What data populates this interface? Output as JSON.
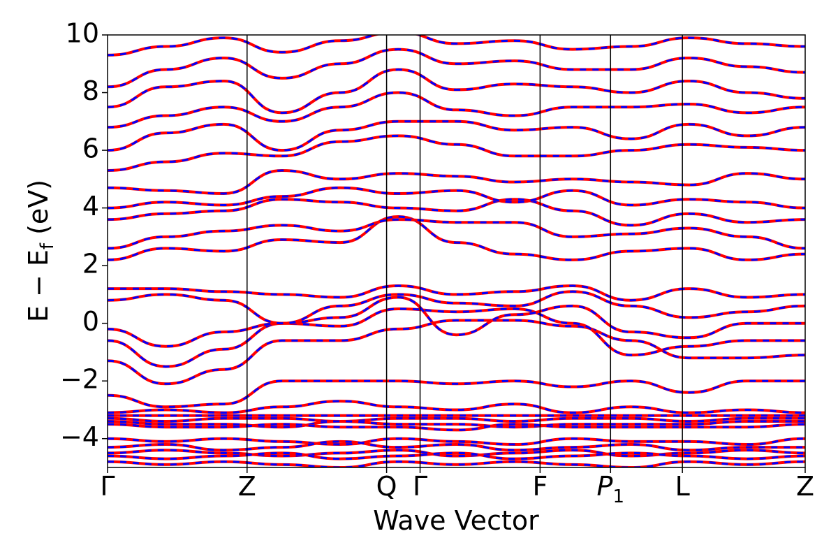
{
  "chart_data": {
    "type": "line",
    "title": "",
    "xlabel": "Wave Vector",
    "ylabel": "E − E",
    "ylabel_sub": "f",
    "ylabel_unit": " (eV)",
    "ylim": [
      -5,
      10
    ],
    "yticks": [
      -4,
      -2,
      0,
      2,
      4,
      6,
      8,
      10
    ],
    "ytick_labels": [
      "−4",
      "−2",
      "0",
      "2",
      "4",
      "6",
      "8",
      "10"
    ],
    "x_range": [
      0,
      1
    ],
    "kpoints": [
      {
        "label": "Γ",
        "x": 0.0
      },
      {
        "label": "Z",
        "x": 0.2
      },
      {
        "label": "Q",
        "x": 0.4
      },
      {
        "label": "Γ",
        "x": 0.448
      },
      {
        "label": "F",
        "x": 0.62
      },
      {
        "label": "P",
        "sub": "1",
        "italic": true,
        "x": 0.721
      },
      {
        "label": "L",
        "x": 0.824
      },
      {
        "label": "Z",
        "x": 1.0
      }
    ],
    "series_style": [
      {
        "color": "#ff0000",
        "style": "solid"
      },
      {
        "color": "#0000ff",
        "style": "dashed"
      }
    ],
    "bands": [
      [
        -1.3,
        -2.1,
        -1.6,
        -0.6,
        -0.6,
        -0.2,
        0.1,
        0.1,
        -0.1,
        -0.6,
        -1.2,
        -1.2,
        -1.1
      ],
      [
        -0.6,
        -1.5,
        -0.9,
        0.0,
        -0.1,
        0.5,
        0.4,
        0.5,
        0.0,
        -1.1,
        -0.8,
        -0.6,
        -0.6
      ],
      [
        -0.2,
        -0.8,
        -0.3,
        0.0,
        0.2,
        0.9,
        -0.4,
        0.3,
        0.6,
        -0.3,
        -0.5,
        0.0,
        0.0
      ],
      [
        0.8,
        1.0,
        0.8,
        0.0,
        0.6,
        1.0,
        0.7,
        0.6,
        1.1,
        0.6,
        0.2,
        0.4,
        0.6
      ],
      [
        1.2,
        1.2,
        1.1,
        1.0,
        0.9,
        1.3,
        1.0,
        1.1,
        1.3,
        0.8,
        1.2,
        0.9,
        1.0
      ],
      [
        2.2,
        2.6,
        2.5,
        2.9,
        2.8,
        3.7,
        2.8,
        2.4,
        2.2,
        2.5,
        2.6,
        2.2,
        2.4
      ],
      [
        2.6,
        3.0,
        3.2,
        3.4,
        3.2,
        3.6,
        3.5,
        3.5,
        3.0,
        3.1,
        3.3,
        3.0,
        2.6
      ],
      [
        3.6,
        3.8,
        3.9,
        4.3,
        4.2,
        4.0,
        3.9,
        4.3,
        3.9,
        3.4,
        3.8,
        3.5,
        3.6
      ],
      [
        4.0,
        4.2,
        4.1,
        4.4,
        4.7,
        4.5,
        4.6,
        4.2,
        4.6,
        4.1,
        4.3,
        4.2,
        4.0
      ],
      [
        4.7,
        4.6,
        4.5,
        5.3,
        5.0,
        5.2,
        5.1,
        4.9,
        5.0,
        4.9,
        4.8,
        5.2,
        5.0
      ],
      [
        5.3,
        5.6,
        5.9,
        5.8,
        6.3,
        6.5,
        6.2,
        5.8,
        5.8,
        6.0,
        6.2,
        6.1,
        6.0
      ],
      [
        6.0,
        6.6,
        6.9,
        6.0,
        6.7,
        7.0,
        7.0,
        6.7,
        6.8,
        6.4,
        6.9,
        6.5,
        6.8
      ],
      [
        6.8,
        7.2,
        7.5,
        7.0,
        7.5,
        8.0,
        7.4,
        7.2,
        7.5,
        7.5,
        7.6,
        7.3,
        7.5
      ],
      [
        7.5,
        8.2,
        8.4,
        7.3,
        8.0,
        8.8,
        8.1,
        8.3,
        8.2,
        8.0,
        8.4,
        8.0,
        7.8
      ],
      [
        8.2,
        8.8,
        9.2,
        8.5,
        9.0,
        9.5,
        9.0,
        9.1,
        8.8,
        8.8,
        9.2,
        8.9,
        8.7
      ],
      [
        9.3,
        9.6,
        9.9,
        9.4,
        9.8,
        10.1,
        9.7,
        9.8,
        9.5,
        9.6,
        9.9,
        9.7,
        9.6
      ],
      [
        -2.5,
        -2.9,
        -2.8,
        -2.0,
        -2.0,
        -2.0,
        -2.1,
        -2.0,
        -2.2,
        -2.0,
        -2.4,
        -2.0,
        -2.0
      ],
      [
        -3.1,
        -3.0,
        -3.1,
        -2.9,
        -2.7,
        -2.9,
        -3.0,
        -2.8,
        -3.1,
        -2.9,
        -3.1,
        -3.0,
        -3.1
      ],
      [
        -3.2,
        -3.2,
        -3.2,
        -3.2,
        -3.2,
        -3.2,
        -3.2,
        -3.2,
        -3.2,
        -3.2,
        -3.2,
        -3.2,
        -3.2
      ],
      [
        -3.3,
        -3.4,
        -3.3,
        -3.3,
        -3.4,
        -3.3,
        -3.3,
        -3.4,
        -3.3,
        -3.3,
        -3.4,
        -3.3,
        -3.3
      ],
      [
        -3.4,
        -3.5,
        -3.5,
        -3.6,
        -3.4,
        -3.5,
        -3.5,
        -3.6,
        -3.5,
        -3.5,
        -3.5,
        -3.4,
        -3.4
      ],
      [
        -3.5,
        -3.6,
        -3.6,
        -3.5,
        -3.6,
        -3.6,
        -3.7,
        -3.5,
        -3.6,
        -3.6,
        -3.6,
        -3.6,
        -3.5
      ],
      [
        -4.0,
        -4.1,
        -4.0,
        -4.1,
        -4.2,
        -4.0,
        -4.1,
        -4.2,
        -4.0,
        -4.1,
        -4.1,
        -4.2,
        -4.0
      ],
      [
        -4.3,
        -4.2,
        -4.4,
        -4.3,
        -4.1,
        -4.3,
        -4.2,
        -4.4,
        -4.3,
        -4.2,
        -4.4,
        -4.3,
        -4.3
      ],
      [
        -4.5,
        -4.4,
        -4.5,
        -4.6,
        -4.5,
        -4.4,
        -4.6,
        -4.5,
        -4.4,
        -4.6,
        -4.5,
        -4.4,
        -4.5
      ],
      [
        -4.6,
        -4.7,
        -4.6,
        -4.5,
        -4.7,
        -4.6,
        -4.5,
        -4.7,
        -4.6,
        -4.5,
        -4.6,
        -4.7,
        -4.6
      ],
      [
        -4.8,
        -4.9,
        -4.8,
        -4.9,
        -5.0,
        -4.8,
        -4.9,
        -4.8,
        -4.9,
        -5.0,
        -4.8,
        -4.9,
        -4.8
      ]
    ]
  }
}
